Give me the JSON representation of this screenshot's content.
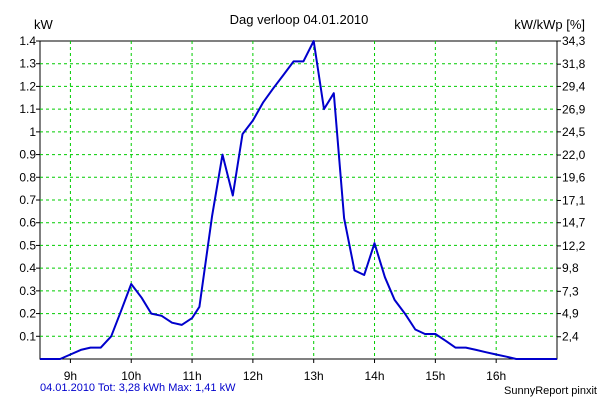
{
  "chart_data": {
    "type": "line",
    "title": "Dag  verloop 04.01.2010",
    "ylabel_left": "kW",
    "ylabel_right": "kW/kWp [%]",
    "xlim": [
      8.5,
      17.0
    ],
    "ylim": [
      0,
      1.4
    ],
    "x_ticks": [
      9,
      10,
      11,
      12,
      13,
      14,
      15,
      16
    ],
    "x_tick_labels": [
      "9h",
      "10h",
      "11h",
      "12h",
      "13h",
      "14h",
      "15h",
      "16h"
    ],
    "y_ticks": [
      0.1,
      0.2,
      0.3,
      0.4,
      0.5,
      0.6,
      0.7,
      0.8,
      0.9,
      1,
      1.1,
      1.2,
      1.3,
      1.4
    ],
    "y_tick_labels": [
      "0.1",
      "0.2",
      "0.3",
      "0.4",
      "0.5",
      "0.6",
      "0.7",
      "0.8",
      "0.9",
      "1",
      "1.1",
      "1.2",
      "1.3",
      "1.4"
    ],
    "y2_ticks": [
      2.4,
      4.9,
      7.3,
      9.8,
      12.2,
      14.7,
      17.1,
      19.6,
      22.0,
      24.5,
      26.9,
      29.4,
      31.8,
      34.3
    ],
    "y2_tick_labels": [
      "2,4",
      "4,9",
      "7,3",
      "9,8",
      "12,2",
      "14,7",
      "17,1",
      "19,6",
      "22,0",
      "24,5",
      "26,9",
      "29,4",
      "31,8",
      "34,3"
    ],
    "y2lim": [
      0,
      34.3
    ],
    "grid": true,
    "series": [
      {
        "color": "#0000cc",
        "x": [
          8.5,
          8.83,
          9.0,
          9.17,
          9.33,
          9.5,
          9.67,
          9.83,
          10.0,
          10.17,
          10.33,
          10.5,
          10.67,
          10.83,
          11.0,
          11.12,
          11.33,
          11.5,
          11.67,
          11.83,
          12.0,
          12.17,
          12.33,
          12.5,
          12.67,
          12.83,
          13.0,
          13.17,
          13.33,
          13.5,
          13.67,
          13.83,
          14.0,
          14.17,
          14.33,
          14.5,
          14.67,
          14.83,
          15.0,
          15.17,
          15.33,
          15.5,
          15.67,
          15.83,
          16.0,
          16.17,
          16.33,
          16.5,
          17.0
        ],
        "y": [
          0.0,
          0.0,
          0.02,
          0.04,
          0.05,
          0.05,
          0.1,
          0.21,
          0.33,
          0.27,
          0.2,
          0.19,
          0.16,
          0.15,
          0.18,
          0.23,
          0.63,
          0.9,
          0.72,
          0.99,
          1.05,
          1.13,
          1.19,
          1.25,
          1.31,
          1.31,
          1.4,
          1.1,
          1.17,
          0.62,
          0.39,
          0.37,
          0.51,
          0.36,
          0.26,
          0.2,
          0.13,
          0.11,
          0.11,
          0.08,
          0.05,
          0.05,
          0.04,
          0.03,
          0.02,
          0.01,
          0.0,
          0.0,
          0.0
        ]
      }
    ]
  },
  "footer": {
    "left": "04.01.2010 Tot: 3,28 kWh Max: 1,41 kW",
    "right": "SunnyReport pinxit"
  }
}
